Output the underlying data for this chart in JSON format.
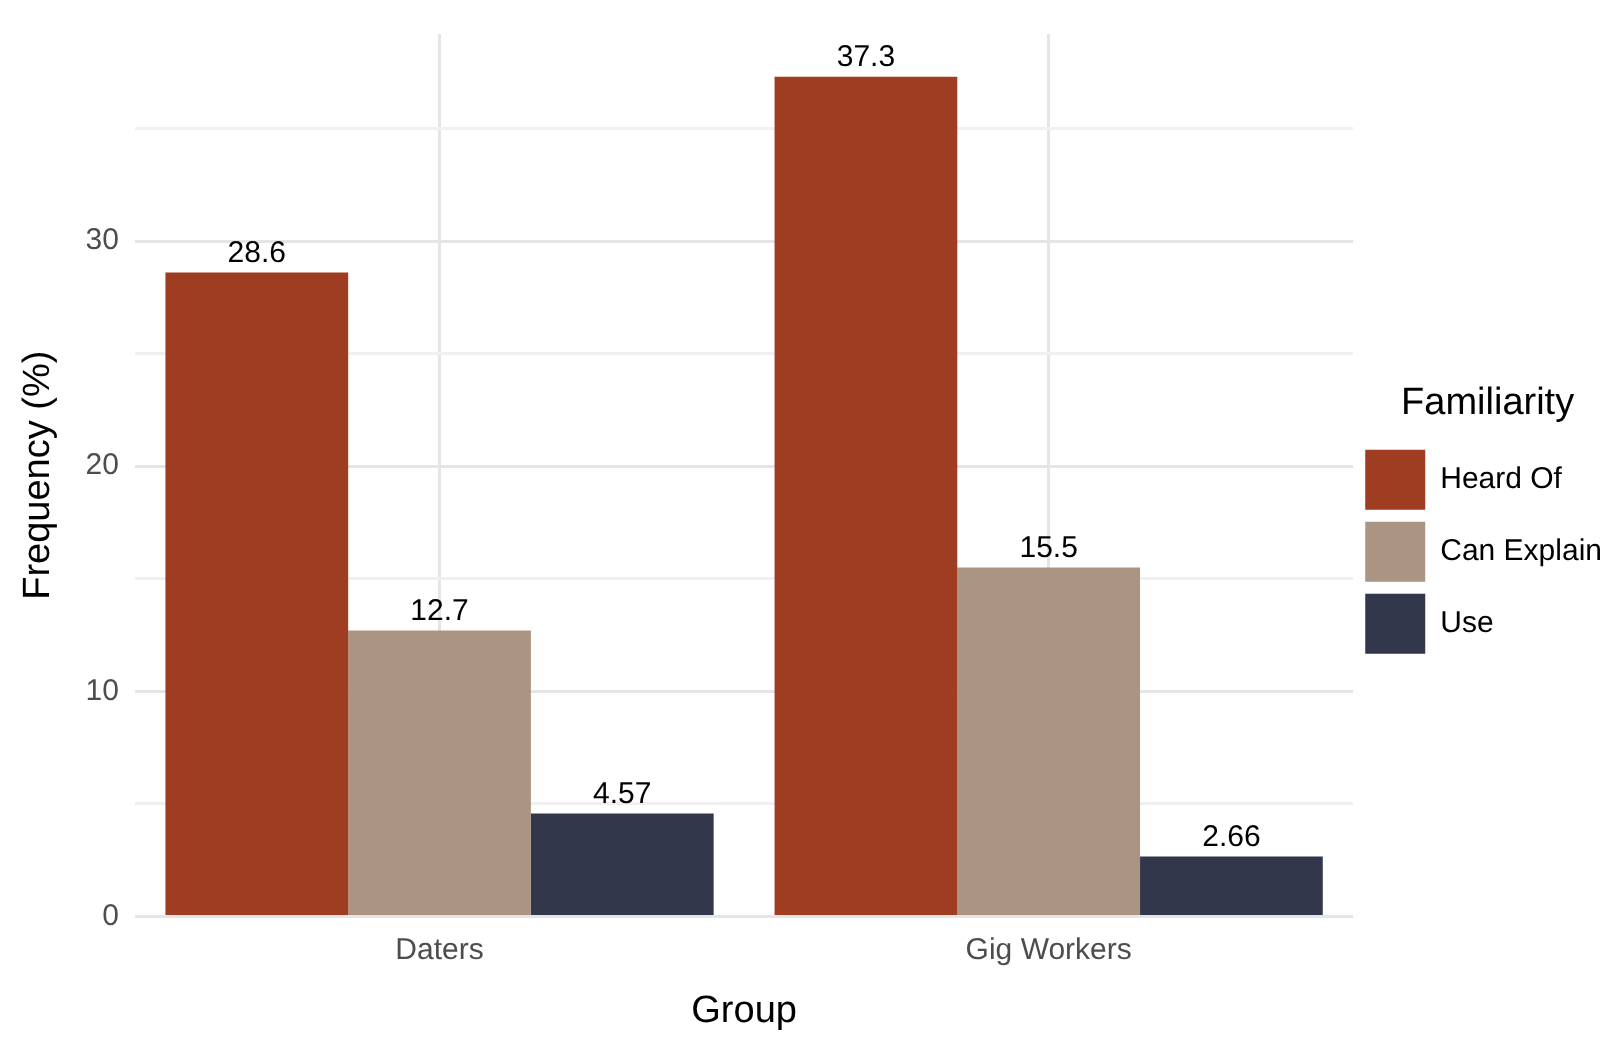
{
  "chart_data": {
    "type": "bar",
    "xlabel": "Group",
    "ylabel": "Frequency (%)",
    "legend_title": "Familiarity",
    "categories": [
      "Daters",
      "Gig Workers"
    ],
    "series": [
      {
        "name": "Heard Of",
        "color": "#9e3d22",
        "values": [
          28.6,
          37.3
        ]
      },
      {
        "name": "Can Explain",
        "color": "#ab9481",
        "values": [
          12.7,
          15.5
        ]
      },
      {
        "name": "Use",
        "color": "#33374b",
        "values": [
          4.57,
          2.66
        ]
      }
    ],
    "ylim": [
      0,
      39.2
    ],
    "yticks": [
      0,
      {
        "value": 5,
        "label": null
      },
      10,
      {
        "value": 15,
        "label": null
      },
      20,
      {
        "value": 25,
        "label": null
      },
      30,
      {
        "value": 35,
        "label": null
      }
    ],
    "grid": true,
    "legend": "right",
    "data_labels": true
  }
}
